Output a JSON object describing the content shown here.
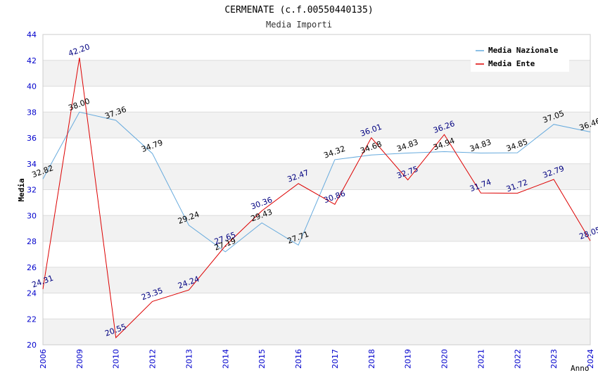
{
  "chart_data": {
    "type": "line",
    "title": "CERMENATE (c.f.00550440135)",
    "subtitle": "Media Importi",
    "xlabel": "Anno",
    "ylabel": "Media",
    "ylim": [
      20,
      44
    ],
    "yticks": [
      20,
      22,
      24,
      26,
      28,
      30,
      32,
      34,
      36,
      38,
      40,
      42,
      44
    ],
    "categories": [
      "2006",
      "2009",
      "2010",
      "2012",
      "2013",
      "2014",
      "2015",
      "2016",
      "2017",
      "2018",
      "2019",
      "2020",
      "2021",
      "2022",
      "2023",
      "2024"
    ],
    "legend_position": "top-right",
    "grid": true,
    "series": [
      {
        "name": "Media Nazionale",
        "color": "#66aadd",
        "values": [
          32.82,
          38.0,
          37.36,
          34.79,
          29.24,
          27.19,
          29.43,
          27.71,
          34.32,
          34.68,
          34.83,
          34.94,
          34.83,
          34.85,
          37.05,
          36.46
        ],
        "labels": [
          "32.82",
          "38.00",
          "37.36",
          "34.79",
          "29.24",
          "27.19",
          "29.43",
          "27.71",
          "34.32",
          "34.68",
          "34.83",
          "34.94",
          "34.83",
          "34.85",
          "37.05",
          "36.46"
        ]
      },
      {
        "name": "Media Ente",
        "color": "#dd0000",
        "values": [
          24.31,
          42.2,
          20.55,
          23.35,
          24.24,
          27.65,
          30.36,
          32.47,
          30.86,
          36.01,
          32.75,
          36.26,
          31.74,
          31.72,
          32.79,
          28.05
        ],
        "labels": [
          "24.31",
          "42.20",
          "20.55",
          "23.35",
          "24.24",
          "27.65",
          "30.36",
          "32.47",
          "30.86",
          "36.01",
          "32.75",
          "36.26",
          "31.74",
          "31.72",
          "32.79",
          "28.05"
        ]
      }
    ]
  }
}
